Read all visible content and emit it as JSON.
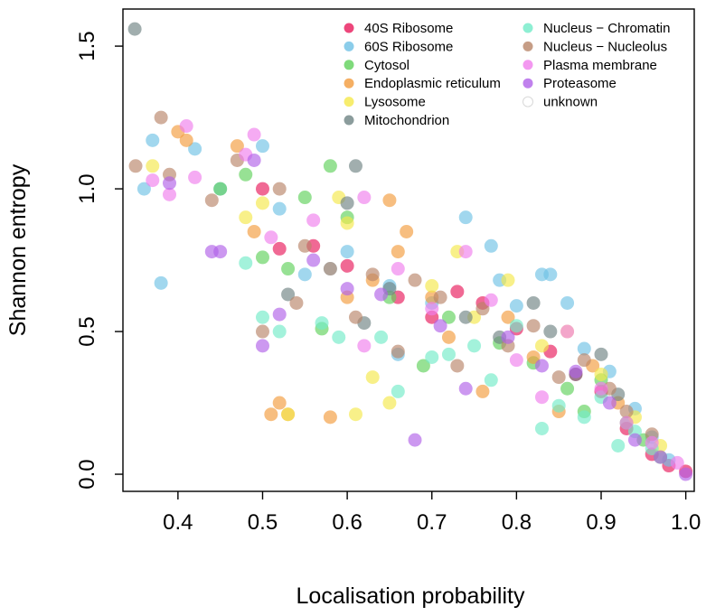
{
  "chart_data": {
    "type": "scatter",
    "title": "",
    "xlabel": "Localisation probability",
    "ylabel": "Shannon entropy",
    "xlim": [
      0.335,
      1.01
    ],
    "ylim": [
      -0.06,
      1.63
    ],
    "x_ticks": [
      "0.4",
      "0.5",
      "0.6",
      "0.7",
      "0.8",
      "0.9",
      "1.0"
    ],
    "y_ticks": [
      "0.0",
      "0.5",
      "1.0",
      "1.5"
    ],
    "grid": false,
    "legend_placement": "top-right",
    "series": [
      {
        "name": "40S Ribosome",
        "color": "#E8185A",
        "x": [
          0.5,
          0.52,
          0.56,
          0.6,
          0.66,
          0.7,
          0.73,
          0.76,
          0.8,
          0.84,
          0.87,
          0.9,
          0.93,
          0.96,
          0.98,
          1.0
        ],
        "y": [
          1.0,
          0.79,
          0.8,
          0.73,
          0.62,
          0.55,
          0.64,
          0.6,
          0.51,
          0.43,
          0.35,
          0.29,
          0.16,
          0.07,
          0.03,
          0.01
        ]
      },
      {
        "name": "60S Ribosome",
        "color": "#6EC1E5",
        "x": [
          0.36,
          0.37,
          0.38,
          0.42,
          0.45,
          0.5,
          0.52,
          0.55,
          0.58,
          0.6,
          0.65,
          0.66,
          0.7,
          0.74,
          0.77,
          0.78,
          0.8,
          0.83,
          0.84,
          0.86,
          0.88,
          0.91,
          0.94,
          0.96,
          0.98
        ],
        "y": [
          1.0,
          1.17,
          0.67,
          1.14,
          1.0,
          1.15,
          0.93,
          0.7,
          0.72,
          0.78,
          0.66,
          0.42,
          0.6,
          0.9,
          0.8,
          0.68,
          0.59,
          0.7,
          0.7,
          0.6,
          0.44,
          0.36,
          0.23,
          0.13,
          0.05
        ]
      },
      {
        "name": "Cytosol",
        "color": "#5FD15A",
        "x": [
          0.45,
          0.48,
          0.5,
          0.53,
          0.55,
          0.57,
          0.58,
          0.6,
          0.65,
          0.69,
          0.72,
          0.78,
          0.82,
          0.86,
          0.88,
          0.9,
          0.93,
          0.95,
          0.97
        ],
        "y": [
          1.0,
          1.05,
          0.76,
          0.72,
          0.97,
          0.51,
          1.08,
          0.9,
          0.62,
          0.38,
          0.55,
          0.46,
          0.39,
          0.3,
          0.22,
          0.33,
          0.18,
          0.12,
          0.06
        ]
      },
      {
        "name": "Endoplasmic reticulum",
        "color": "#F29B3C",
        "x": [
          0.4,
          0.41,
          0.47,
          0.49,
          0.51,
          0.52,
          0.53,
          0.58,
          0.6,
          0.63,
          0.65,
          0.66,
          0.67,
          0.7,
          0.72,
          0.76,
          0.79,
          0.82,
          0.85,
          0.89,
          0.92
        ],
        "y": [
          1.2,
          1.17,
          1.15,
          0.85,
          0.21,
          0.25,
          0.21,
          0.2,
          0.62,
          0.68,
          0.96,
          0.78,
          0.85,
          0.62,
          0.48,
          0.29,
          0.55,
          0.41,
          0.22,
          0.38,
          0.25
        ]
      },
      {
        "name": "Lysosome",
        "color": "#F5E84A",
        "x": [
          0.37,
          0.48,
          0.5,
          0.53,
          0.59,
          0.6,
          0.61,
          0.63,
          0.65,
          0.7,
          0.73,
          0.75,
          0.79,
          0.83,
          0.86,
          0.9,
          0.94,
          0.97
        ],
        "y": [
          1.08,
          0.9,
          0.95,
          0.21,
          0.97,
          0.88,
          0.21,
          0.34,
          0.25,
          0.66,
          0.78,
          0.55,
          0.68,
          0.45,
          0.5,
          0.35,
          0.2,
          0.1
        ]
      },
      {
        "name": "Mitochondrion",
        "color": "#6E8383",
        "x": [
          0.349,
          0.53,
          0.6,
          0.61,
          0.62,
          0.65,
          0.74,
          0.78,
          0.82,
          0.84,
          0.87,
          0.9,
          0.92
        ],
        "y": [
          1.56,
          0.63,
          0.95,
          1.08,
          0.53,
          0.65,
          0.55,
          0.48,
          0.6,
          0.5,
          0.35,
          0.42,
          0.28
        ]
      },
      {
        "name": "Nucleus − Chromatin",
        "color": "#72EBC8",
        "x": [
          0.48,
          0.5,
          0.52,
          0.57,
          0.59,
          0.64,
          0.66,
          0.7,
          0.72,
          0.75,
          0.77,
          0.8,
          0.83,
          0.85,
          0.88,
          0.9,
          0.92,
          0.94,
          0.96
        ],
        "y": [
          0.74,
          0.55,
          0.5,
          0.53,
          0.48,
          0.48,
          0.29,
          0.41,
          0.42,
          0.45,
          0.33,
          0.52,
          0.16,
          0.24,
          0.2,
          0.27,
          0.1,
          0.15,
          0.09
        ]
      },
      {
        "name": "Nucleus − Nucleolus",
        "color": "#B88468",
        "x": [
          0.35,
          0.38,
          0.39,
          0.44,
          0.47,
          0.5,
          0.52,
          0.54,
          0.55,
          0.58,
          0.61,
          0.63,
          0.66,
          0.68,
          0.71,
          0.73,
          0.76,
          0.79,
          0.82,
          0.85,
          0.88,
          0.91,
          0.93,
          0.96
        ],
        "y": [
          1.08,
          1.25,
          1.05,
          0.96,
          1.1,
          0.5,
          1.0,
          0.6,
          0.8,
          0.72,
          0.55,
          0.7,
          0.43,
          0.68,
          0.62,
          0.38,
          0.58,
          0.45,
          0.52,
          0.34,
          0.4,
          0.3,
          0.22,
          0.14
        ]
      },
      {
        "name": "Plasma membrane",
        "color": "#F07EEC",
        "x": [
          0.37,
          0.39,
          0.41,
          0.42,
          0.48,
          0.49,
          0.51,
          0.56,
          0.62,
          0.62,
          0.66,
          0.7,
          0.74,
          0.77,
          0.8,
          0.83,
          0.86,
          0.9,
          0.93,
          0.96,
          0.99
        ],
        "y": [
          1.03,
          0.98,
          1.22,
          1.04,
          1.12,
          1.19,
          0.83,
          0.89,
          0.97,
          0.45,
          0.72,
          0.58,
          0.78,
          0.61,
          0.4,
          0.27,
          0.5,
          0.3,
          0.18,
          0.11,
          0.04
        ]
      },
      {
        "name": "Proteasome",
        "color": "#B061E8",
        "x": [
          0.39,
          0.44,
          0.45,
          0.49,
          0.5,
          0.52,
          0.56,
          0.6,
          0.64,
          0.68,
          0.71,
          0.74,
          0.79,
          0.83,
          0.87,
          0.91,
          0.94,
          0.97,
          1.0
        ],
        "y": [
          1.02,
          0.78,
          0.78,
          1.1,
          0.45,
          0.56,
          0.75,
          0.65,
          0.63,
          0.12,
          0.52,
          0.3,
          0.48,
          0.38,
          0.36,
          0.25,
          0.12,
          0.06,
          0.0
        ]
      },
      {
        "name": "unknown",
        "color": "#D9D9D9",
        "x": [],
        "y": []
      }
    ]
  }
}
